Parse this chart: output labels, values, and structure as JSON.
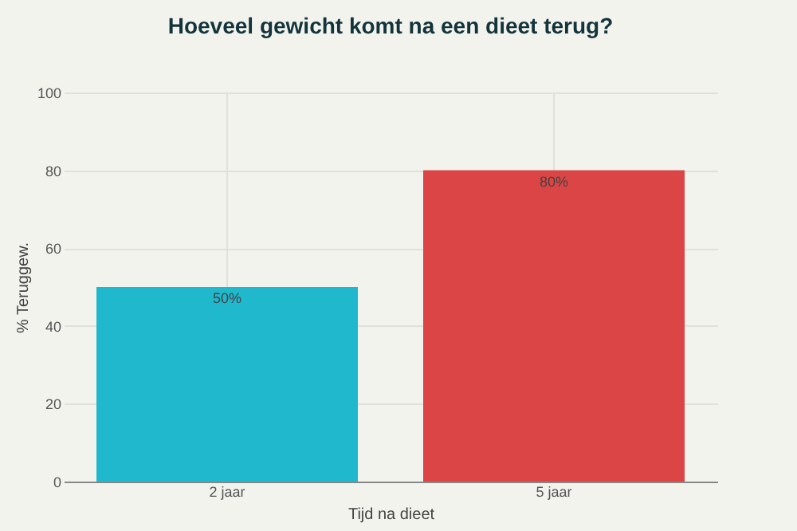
{
  "chart_data": {
    "type": "bar",
    "title": "Hoeveel gewicht komt na een dieet terug?",
    "xlabel": "Tijd na dieet",
    "ylabel": "% Teruggew.",
    "categories": [
      "2 jaar",
      "5 jaar"
    ],
    "values": [
      50,
      80
    ],
    "colors": [
      "#1fb8cd",
      "#db4545"
    ],
    "value_labels": [
      "50%",
      "80%"
    ],
    "ylim": [
      0,
      100
    ],
    "yticks": [
      0,
      20,
      40,
      60,
      80,
      100
    ],
    "grid": true
  }
}
